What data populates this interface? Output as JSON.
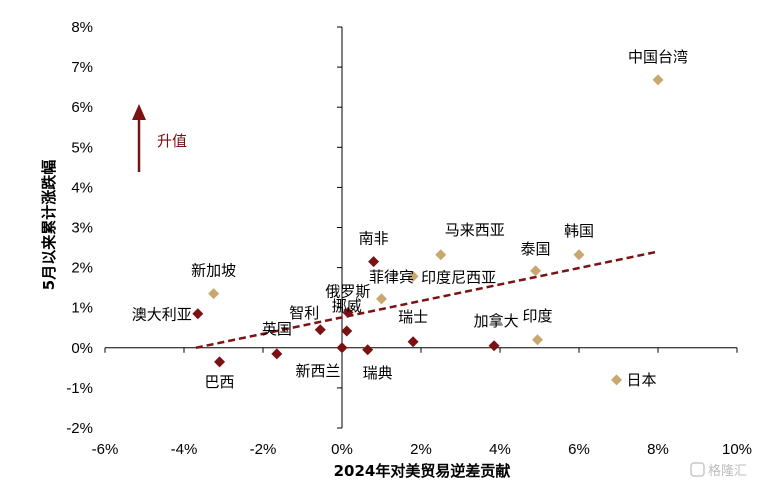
{
  "chart_data": {
    "type": "scatter",
    "xlabel": "2024年对美贸易逆差贡献",
    "ylabel": "5月以来累计涨跌幅",
    "xlim": [
      -6,
      10
    ],
    "ylim": [
      -2,
      8
    ],
    "x_ticks": [
      "-6%",
      "-4%",
      "-2%",
      "0%",
      "2%",
      "4%",
      "6%",
      "8%",
      "10%"
    ],
    "y_ticks": [
      "-2%",
      "-1%",
      "0%",
      "1%",
      "2%",
      "3%",
      "4%",
      "5%",
      "6%",
      "7%",
      "8%"
    ],
    "grid": false,
    "colors": {
      "dark": "#7b1113",
      "light": "#c9a870",
      "trend": "#7b1113"
    },
    "points": [
      {
        "label": "中国台湾",
        "x": 8.0,
        "y": 6.68,
        "color": "light"
      },
      {
        "label": "新加坡",
        "x": -3.25,
        "y": 1.35,
        "color": "light"
      },
      {
        "label": "澳大利亚",
        "x": -3.65,
        "y": 0.85,
        "color": "dark"
      },
      {
        "label": "巴西",
        "x": -3.1,
        "y": -0.35,
        "color": "dark"
      },
      {
        "label": "英国",
        "x": -1.65,
        "y": -0.15,
        "color": "dark"
      },
      {
        "label": "智利",
        "x": -0.55,
        "y": 0.45,
        "color": "dark"
      },
      {
        "label": "俄罗斯",
        "x": 0.15,
        "y": 0.88,
        "color": "dark"
      },
      {
        "label": "挪威",
        "x": 0.12,
        "y": 0.42,
        "color": "dark"
      },
      {
        "label": "新西兰",
        "x": 0.0,
        "y": 0.0,
        "color": "dark"
      },
      {
        "label": "瑞典",
        "x": 0.65,
        "y": -0.05,
        "color": "dark"
      },
      {
        "label": "南非",
        "x": 0.8,
        "y": 2.15,
        "color": "dark"
      },
      {
        "label": "菲律宾",
        "x": 1.0,
        "y": 1.22,
        "color": "light"
      },
      {
        "label": "印度尼西亚",
        "x": 1.8,
        "y": 1.78,
        "color": "light"
      },
      {
        "label": "马来西亚",
        "x": 2.5,
        "y": 2.32,
        "color": "light"
      },
      {
        "label": "瑞士",
        "x": 1.8,
        "y": 0.15,
        "color": "dark"
      },
      {
        "label": "加拿大",
        "x": 3.85,
        "y": 0.05,
        "color": "dark"
      },
      {
        "label": "泰国",
        "x": 4.9,
        "y": 1.92,
        "color": "light"
      },
      {
        "label": "印度",
        "x": 4.95,
        "y": 0.2,
        "color": "light"
      },
      {
        "label": "韩国",
        "x": 6.0,
        "y": 2.32,
        "color": "light"
      },
      {
        "label": "日本",
        "x": 6.95,
        "y": -0.8,
        "color": "light"
      }
    ],
    "trendline": {
      "x": [
        -3.7,
        8.0
      ],
      "y": [
        0.0,
        2.4
      ]
    },
    "annotation": {
      "text": "升值"
    }
  },
  "watermark": {
    "text": "格隆汇"
  }
}
